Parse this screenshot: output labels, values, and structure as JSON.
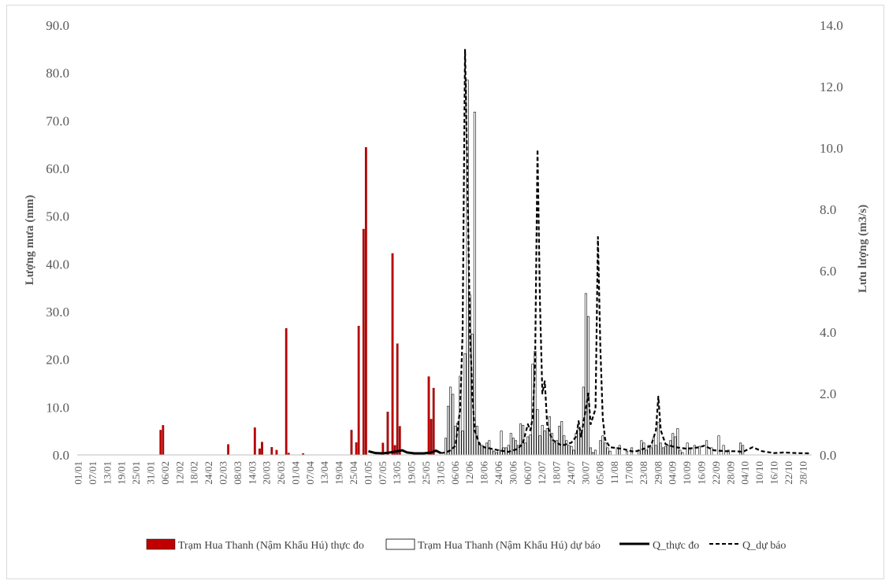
{
  "chart_data": {
    "type": "bar+line",
    "title": "",
    "ylabel_left": "Lượng mưa (mm)",
    "ylabel_right": "Lưu lượng (m3/s)",
    "ylim_left": [
      0,
      90
    ],
    "ylim_right": [
      0,
      14
    ],
    "yticks_left": [
      "0.0",
      "10.0",
      "20.0",
      "30.0",
      "40.0",
      "50.0",
      "60.0",
      "70.0",
      "80.0",
      "90.0"
    ],
    "yticks_right": [
      "0.0",
      "2.0",
      "4.0",
      "6.0",
      "8.0",
      "10.0",
      "12.0",
      "14.0"
    ],
    "x_start": "01/01",
    "x_end": "31/10",
    "xticks": [
      "01/01",
      "07/01",
      "13/01",
      "19/01",
      "25/01",
      "31/01",
      "06/02",
      "12/02",
      "18/02",
      "24/02",
      "02/03",
      "08/03",
      "14/03",
      "20/03",
      "26/03",
      "01/04",
      "07/04",
      "13/04",
      "19/04",
      "25/04",
      "01/05",
      "07/05",
      "13/05",
      "19/05",
      "25/05",
      "31/05",
      "06/06",
      "12/06",
      "18/06",
      "24/06",
      "30/06",
      "06/07",
      "12/07",
      "18/07",
      "24/07",
      "30/07",
      "05/08",
      "11/08",
      "17/08",
      "23/08",
      "29/08",
      "04/09",
      "10/09",
      "16/09",
      "22/09",
      "28/09",
      "04/10",
      "10/10",
      "16/10",
      "22/10",
      "28/10"
    ],
    "grid": false,
    "legend_position": "bottom",
    "series": [
      {
        "name": "Trạm Hua Thanh (Nậm Khẩu Hú) thực đo",
        "type": "bar",
        "axis": "left",
        "color": "#c00000",
        "points": [
          [
            "04/02",
            5.2
          ],
          [
            "05/02",
            6.2
          ],
          [
            "04/03",
            2.2
          ],
          [
            "15/03",
            5.7
          ],
          [
            "17/03",
            1.3
          ],
          [
            "18/03",
            2.7
          ],
          [
            "22/03",
            1.6
          ],
          [
            "24/03",
            1.0
          ],
          [
            "28/03",
            26.5
          ],
          [
            "29/03",
            0.4
          ],
          [
            "04/04",
            0.3
          ],
          [
            "24/04",
            5.2
          ],
          [
            "26/04",
            2.6
          ],
          [
            "27/04",
            27.0
          ],
          [
            "29/04",
            47.3
          ],
          [
            "30/04",
            64.4
          ],
          [
            "07/05",
            2.5
          ],
          [
            "09/05",
            9.0
          ],
          [
            "11/05",
            42.2
          ],
          [
            "12/05",
            2.0
          ],
          [
            "13/05",
            23.3
          ],
          [
            "14/05",
            6.0
          ],
          [
            "26/05",
            16.4
          ],
          [
            "27/05",
            7.5
          ],
          [
            "28/05",
            14.0
          ]
        ]
      },
      {
        "name": "Trạm Hua Thanh (Nậm Khẩu Hú) dự báo",
        "type": "bar",
        "axis": "left",
        "color": "#ffffff",
        "points": [
          [
            "02/06",
            3.5
          ],
          [
            "03/06",
            10.2
          ],
          [
            "04/06",
            14.2
          ],
          [
            "05/06",
            12.7
          ],
          [
            "06/06",
            6.0
          ],
          [
            "07/06",
            6.7
          ],
          [
            "08/06",
            16.5
          ],
          [
            "09/06",
            5.0
          ],
          [
            "10/06",
            21.2
          ],
          [
            "11/06",
            78.5
          ],
          [
            "12/06",
            33.5
          ],
          [
            "13/06",
            25.3
          ],
          [
            "14/06",
            71.8
          ],
          [
            "15/06",
            6.0
          ],
          [
            "16/06",
            2.5
          ],
          [
            "17/06",
            2.0
          ],
          [
            "18/06",
            1.5
          ],
          [
            "19/06",
            2.5
          ],
          [
            "20/06",
            3.0
          ],
          [
            "21/06",
            1.2
          ],
          [
            "22/06",
            0.8
          ],
          [
            "23/06",
            0.5
          ],
          [
            "24/06",
            1.0
          ],
          [
            "25/06",
            5.0
          ],
          [
            "26/06",
            1.5
          ],
          [
            "27/06",
            1.5
          ],
          [
            "28/06",
            2.0
          ],
          [
            "29/06",
            4.5
          ],
          [
            "30/06",
            3.5
          ],
          [
            "01/07",
            3.0
          ],
          [
            "02/07",
            2.0
          ],
          [
            "03/07",
            6.5
          ],
          [
            "04/07",
            6.2
          ],
          [
            "05/07",
            2.5
          ],
          [
            "06/07",
            3.8
          ],
          [
            "07/07",
            4.2
          ],
          [
            "08/07",
            19.0
          ],
          [
            "09/07",
            21.7
          ],
          [
            "10/07",
            9.5
          ],
          [
            "11/07",
            4.0
          ],
          [
            "12/07",
            6.2
          ],
          [
            "13/07",
            5.0
          ],
          [
            "14/07",
            5.5
          ],
          [
            "15/07",
            8.0
          ],
          [
            "16/07",
            4.5
          ],
          [
            "17/07",
            2.5
          ],
          [
            "18/07",
            3.0
          ],
          [
            "19/07",
            6.0
          ],
          [
            "20/07",
            7.0
          ],
          [
            "21/07",
            4.0
          ],
          [
            "22/07",
            3.0
          ],
          [
            "23/07",
            2.0
          ],
          [
            "24/07",
            1.8
          ],
          [
            "25/07",
            1.0
          ],
          [
            "26/07",
            4.5
          ],
          [
            "27/07",
            5.5
          ],
          [
            "28/07",
            5.2
          ],
          [
            "29/07",
            14.2
          ],
          [
            "30/07",
            33.8
          ],
          [
            "31/07",
            29.0
          ],
          [
            "01/08",
            1.5
          ],
          [
            "02/08",
            0.5
          ],
          [
            "03/08",
            1.0
          ],
          [
            "05/08",
            3.0
          ],
          [
            "06/08",
            4.0
          ],
          [
            "07/08",
            2.5
          ],
          [
            "08/08",
            1.5
          ],
          [
            "09/08",
            0.8
          ],
          [
            "12/08",
            1.5
          ],
          [
            "13/08",
            2.0
          ],
          [
            "16/08",
            0.8
          ],
          [
            "18/08",
            1.5
          ],
          [
            "21/08",
            1.0
          ],
          [
            "22/08",
            3.0
          ],
          [
            "23/08",
            2.5
          ],
          [
            "24/08",
            1.0
          ],
          [
            "25/08",
            2.0
          ],
          [
            "26/08",
            1.5
          ],
          [
            "27/08",
            3.5
          ],
          [
            "28/08",
            2.0
          ],
          [
            "29/08",
            6.8
          ],
          [
            "30/08",
            2.5
          ],
          [
            "31/08",
            1.5
          ],
          [
            "01/09",
            1.8
          ],
          [
            "02/09",
            2.0
          ],
          [
            "03/09",
            3.0
          ],
          [
            "04/09",
            4.5
          ],
          [
            "05/09",
            3.8
          ],
          [
            "06/09",
            5.5
          ],
          [
            "07/09",
            1.0
          ],
          [
            "08/09",
            0.5
          ],
          [
            "10/09",
            2.5
          ],
          [
            "11/09",
            1.5
          ],
          [
            "13/09",
            2.0
          ],
          [
            "15/09",
            1.8
          ],
          [
            "18/09",
            3.0
          ],
          [
            "20/09",
            1.5
          ],
          [
            "23/09",
            4.0
          ],
          [
            "25/09",
            2.0
          ],
          [
            "27/09",
            1.0
          ],
          [
            "02/10",
            2.5
          ],
          [
            "03/10",
            2.0
          ]
        ]
      },
      {
        "name": "Q_thực đo",
        "type": "line",
        "axis": "right",
        "color": "#000000",
        "style": "solid",
        "points": [
          [
            "01/05",
            0.12
          ],
          [
            "04/05",
            0.06
          ],
          [
            "07/05",
            0.05
          ],
          [
            "10/05",
            0.08
          ],
          [
            "13/05",
            0.12
          ],
          [
            "15/05",
            0.15
          ],
          [
            "17/05",
            0.08
          ],
          [
            "20/05",
            0.05
          ],
          [
            "24/05",
            0.05
          ],
          [
            "27/05",
            0.08
          ],
          [
            "29/05",
            0.14
          ],
          [
            "31/05",
            0.06
          ]
        ]
      },
      {
        "name": "Q_dự báo",
        "type": "line",
        "axis": "right",
        "color": "#000000",
        "style": "dashed",
        "points": [
          [
            "31/05",
            0.06
          ],
          [
            "02/06",
            0.08
          ],
          [
            "04/06",
            0.15
          ],
          [
            "06/06",
            0.3
          ],
          [
            "07/06",
            0.9
          ],
          [
            "08/06",
            1.5
          ],
          [
            "09/06",
            4.0
          ],
          [
            "10/06",
            13.2
          ],
          [
            "11/06",
            9.0
          ],
          [
            "12/06",
            4.2
          ],
          [
            "13/06",
            2.0
          ],
          [
            "14/06",
            0.8
          ],
          [
            "16/06",
            0.35
          ],
          [
            "18/06",
            0.25
          ],
          [
            "21/06",
            0.2
          ],
          [
            "24/06",
            0.15
          ],
          [
            "28/06",
            0.1
          ],
          [
            "02/07",
            0.2
          ],
          [
            "04/07",
            0.4
          ],
          [
            "06/07",
            1.0
          ],
          [
            "07/07",
            0.8
          ],
          [
            "08/07",
            1.2
          ],
          [
            "09/07",
            3.0
          ],
          [
            "10/07",
            9.95
          ],
          [
            "11/07",
            5.0
          ],
          [
            "12/07",
            2.0
          ],
          [
            "13/07",
            2.4
          ],
          [
            "14/07",
            1.0
          ],
          [
            "16/07",
            0.5
          ],
          [
            "20/07",
            0.3
          ],
          [
            "24/07",
            0.4
          ],
          [
            "26/07",
            0.6
          ],
          [
            "27/07",
            1.1
          ],
          [
            "28/07",
            0.6
          ],
          [
            "30/07",
            1.5
          ],
          [
            "31/07",
            2.0
          ],
          [
            "01/08",
            1.0
          ],
          [
            "03/08",
            1.5
          ],
          [
            "04/08",
            7.1
          ],
          [
            "05/08",
            3.5
          ],
          [
            "06/08",
            1.2
          ],
          [
            "07/08",
            0.5
          ],
          [
            "09/08",
            0.25
          ],
          [
            "14/08",
            0.2
          ],
          [
            "19/08",
            0.1
          ],
          [
            "23/08",
            0.2
          ],
          [
            "26/08",
            0.3
          ],
          [
            "28/08",
            0.8
          ],
          [
            "29/08",
            1.9
          ],
          [
            "30/08",
            0.8
          ],
          [
            "01/09",
            0.35
          ],
          [
            "05/09",
            0.25
          ],
          [
            "10/09",
            0.2
          ],
          [
            "15/09",
            0.25
          ],
          [
            "17/09",
            0.3
          ],
          [
            "21/09",
            0.15
          ],
          [
            "26/09",
            0.12
          ],
          [
            "30/09",
            0.12
          ],
          [
            "03/10",
            0.1
          ],
          [
            "07/10",
            0.25
          ],
          [
            "11/10",
            0.12
          ],
          [
            "16/10",
            0.06
          ],
          [
            "20/10",
            0.08
          ],
          [
            "25/10",
            0.06
          ],
          [
            "31/10",
            0.05
          ]
        ]
      }
    ]
  }
}
